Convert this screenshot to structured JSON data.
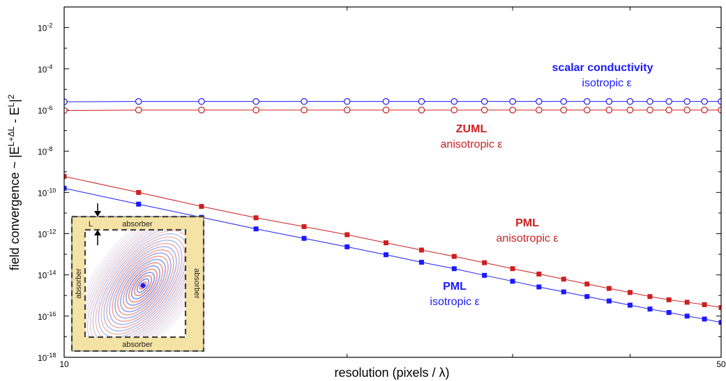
{
  "chart_data": {
    "type": "line",
    "xlabel": "resolution (pixels / λ)",
    "ylabel": {
      "prefix": "field convergence ~ |E",
      "sup1": "L+ΔL",
      "mid": " - E",
      "sup2": "L",
      "suffix": "|",
      "sup3": "2"
    },
    "xscale": "log",
    "yscale": "log",
    "xlim": [
      10,
      50
    ],
    "ylim": [
      1e-18,
      0.1
    ],
    "x_tick_labels": [
      {
        "value": 10,
        "label": "10"
      },
      {
        "value": 50,
        "label": "50"
      }
    ],
    "y_tick_labels": [
      {
        "value": 0.01,
        "base": "10",
        "exp": "-2"
      },
      {
        "value": 0.0001,
        "base": "10",
        "exp": "-4"
      },
      {
        "value": 1e-06,
        "base": "10",
        "exp": "-6"
      },
      {
        "value": 1e-08,
        "base": "10",
        "exp": "-8"
      },
      {
        "value": 1e-10,
        "base": "10",
        "exp": "-10"
      },
      {
        "value": 1e-12,
        "base": "10",
        "exp": "-12"
      },
      {
        "value": 1e-14,
        "base": "10",
        "exp": "-14"
      },
      {
        "value": 1e-16,
        "base": "10",
        "exp": "-16"
      },
      {
        "value": 1e-18,
        "base": "10",
        "exp": "-18"
      }
    ],
    "x": [
      10,
      12,
      14,
      16,
      18,
      20,
      22,
      24,
      26,
      28,
      30,
      32,
      34,
      36,
      38,
      40,
      42,
      44,
      46,
      48,
      50
    ],
    "series": [
      {
        "key": "scalar",
        "color": "#1a1aff",
        "marker": "open-circle",
        "values": [
          2.5e-06,
          2.6e-06,
          2.6e-06,
          2.6e-06,
          2.6e-06,
          2.6e-06,
          2.6e-06,
          2.6e-06,
          2.6e-06,
          2.6e-06,
          2.6e-06,
          2.6e-06,
          2.6e-06,
          2.6e-06,
          2.6e-06,
          2.6e-06,
          2.6e-06,
          2.6e-06,
          2.6e-06,
          2.6e-06,
          2.6e-06
        ]
      },
      {
        "key": "zuml",
        "color": "#cc1f1f",
        "marker": "open-circle",
        "values": [
          9.5e-07,
          1e-06,
          1e-06,
          1e-06,
          1e-06,
          1e-06,
          1e-06,
          1e-06,
          1e-06,
          1e-06,
          1e-06,
          1e-06,
          1e-06,
          1e-06,
          1e-06,
          1e-06,
          1e-06,
          1e-06,
          1e-06,
          1e-06,
          1e-06
        ]
      },
      {
        "key": "pml_aniso",
        "color": "#cc1f1f",
        "marker": "filled-square",
        "values": [
          6e-10,
          1e-10,
          2.1e-11,
          5.9e-12,
          2.2e-12,
          8.9e-13,
          3.6e-13,
          1.6e-13,
          7.9e-14,
          3.9e-14,
          2e-14,
          1.1e-14,
          6.2e-15,
          3.6e-15,
          2.2e-15,
          1.4e-15,
          8.9e-16,
          6.2e-16,
          4.7e-16,
          3.6e-16,
          2.6e-16
        ]
      },
      {
        "key": "pml_iso",
        "color": "#1a1aff",
        "marker": "filled-square",
        "values": [
          1.6e-10,
          2.7e-11,
          6.2e-12,
          1.7e-12,
          5.9e-13,
          2.3e-13,
          9.5e-14,
          4.1e-14,
          2e-14,
          9.5e-15,
          4.9e-15,
          2.6e-15,
          1.5e-15,
          8.9e-16,
          5.4e-16,
          3.4e-16,
          2.2e-16,
          1.5e-16,
          1e-16,
          7.2e-17,
          4.9e-17
        ]
      }
    ],
    "annotations": [
      {
        "key": "scalar",
        "line1": "scalar conductivity",
        "line2": "isotropic ε",
        "color": "#1a1aff"
      },
      {
        "key": "zuml",
        "line1": "ZUML",
        "line2": "anisotropic ε",
        "color": "#cc1f1f"
      },
      {
        "key": "pml_aniso",
        "line1": "PML",
        "line2": "anisotropic ε",
        "color": "#cc1f1f"
      },
      {
        "key": "pml_iso",
        "line1": "PML",
        "line2": "isotropic ε",
        "color": "#1a1aff"
      }
    ],
    "inset": {
      "top_label": "absorber",
      "bottom_label": "absorber",
      "left_label": "absorber",
      "right_label": "absorber",
      "thickness_label": "L",
      "fill_color": "#f5e3a6"
    }
  }
}
